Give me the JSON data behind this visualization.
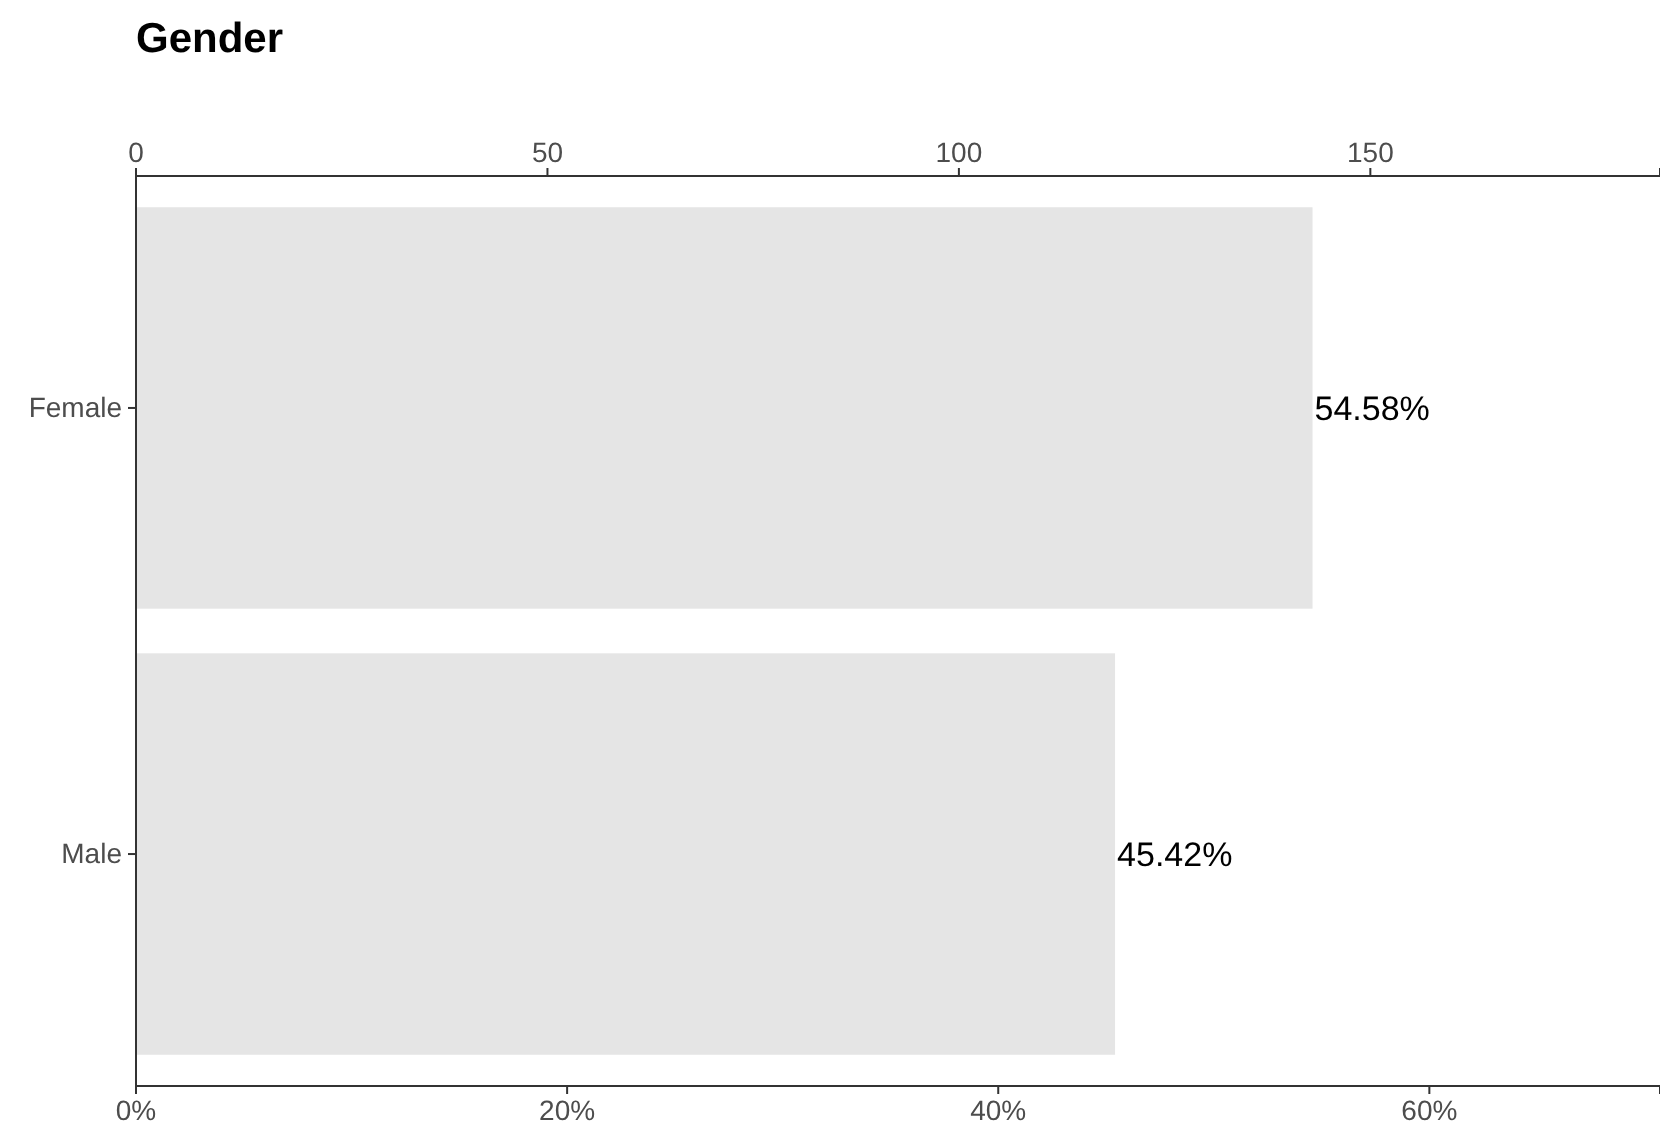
{
  "chart_data": {
    "type": "bar",
    "orientation": "horizontal",
    "title": "Gender",
    "categories": [
      "Female",
      "Male"
    ],
    "values": [
      54.58,
      45.42
    ],
    "value_labels": [
      "54.58%",
      "45.42%"
    ],
    "color": "#e5e5e5",
    "xlim": [
      0,
      70.7
    ],
    "xticks": [
      {
        "value": 0,
        "label": "0%"
      },
      {
        "value": 20,
        "label": "20%"
      },
      {
        "value": 40,
        "label": "40%"
      },
      {
        "value": 60,
        "label": "60%"
      }
    ],
    "x2lim": [
      0,
      185.2
    ],
    "x2ticks": [
      0,
      50,
      100,
      150
    ],
    "grid": false
  }
}
